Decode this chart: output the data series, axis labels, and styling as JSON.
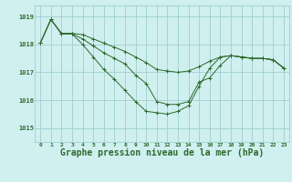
{
  "x": [
    0,
    1,
    2,
    3,
    4,
    5,
    6,
    7,
    8,
    9,
    10,
    11,
    12,
    13,
    14,
    15,
    16,
    17,
    18,
    19,
    20,
    21,
    22,
    23
  ],
  "line1": [
    1018.05,
    1018.9,
    1018.4,
    1018.4,
    1018.35,
    1018.2,
    1018.05,
    1017.9,
    1017.75,
    1017.55,
    1017.35,
    1017.1,
    1017.05,
    1017.0,
    1017.05,
    1017.2,
    1017.4,
    1017.55,
    1017.6,
    1017.55,
    1017.5,
    1017.5,
    1017.45,
    1017.15
  ],
  "line2": [
    1018.05,
    1018.9,
    1018.38,
    1018.38,
    1018.0,
    1017.55,
    1017.1,
    1016.75,
    1016.35,
    1015.95,
    1015.6,
    1015.55,
    1015.5,
    1015.6,
    1015.8,
    1016.5,
    1017.15,
    1017.55,
    1017.6,
    1017.55,
    1017.5,
    1017.5,
    1017.45,
    1017.15
  ],
  "line3": [
    1018.05,
    1018.9,
    1018.38,
    1018.38,
    1018.2,
    1017.95,
    1017.7,
    1017.5,
    1017.3,
    1016.9,
    1016.6,
    1015.95,
    1015.85,
    1015.85,
    1015.95,
    1016.65,
    1016.8,
    1017.25,
    1017.6,
    1017.55,
    1017.5,
    1017.5,
    1017.45,
    1017.15
  ],
  "line_color": "#2d6a2d",
  "bg_color": "#d0efef",
  "grid_color": "#9fcfcf",
  "xlabel": "Graphe pression niveau de la mer (hPa)",
  "xlabel_fontsize": 7,
  "ylim": [
    1014.5,
    1019.4
  ],
  "yticks": [
    1015,
    1016,
    1017,
    1018,
    1019
  ],
  "xticks": [
    0,
    1,
    2,
    3,
    4,
    5,
    6,
    7,
    8,
    9,
    10,
    11,
    12,
    13,
    14,
    15,
    16,
    17,
    18,
    19,
    20,
    21,
    22,
    23
  ]
}
